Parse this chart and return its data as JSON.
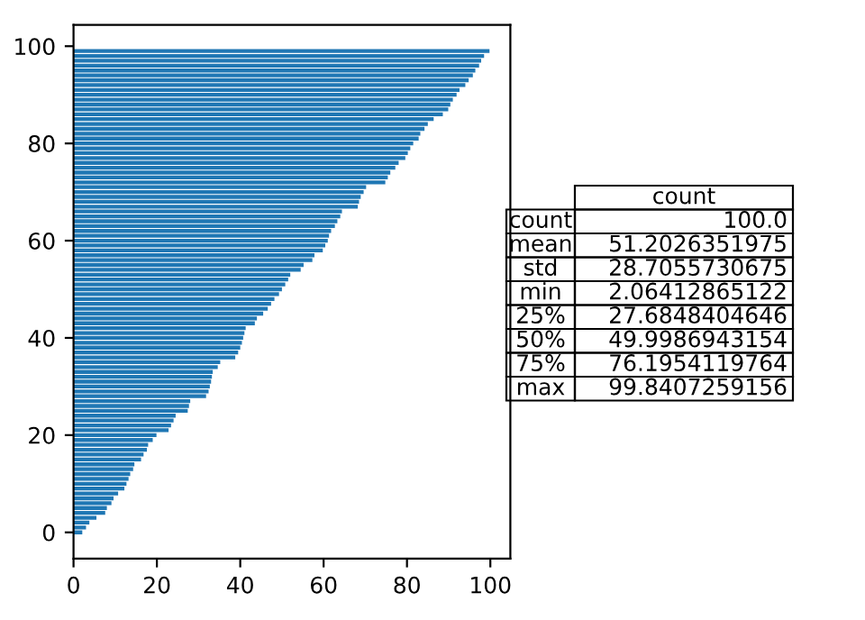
{
  "chart_data": {
    "type": "bar",
    "orientation": "horizontal",
    "x": [
      0,
      1,
      2,
      3,
      4,
      5,
      6,
      7,
      8,
      9,
      10,
      11,
      12,
      13,
      14,
      15,
      16,
      17,
      18,
      19,
      20,
      21,
      22,
      23,
      24,
      25,
      26,
      27,
      28,
      29,
      30,
      31,
      32,
      33,
      34,
      35,
      36,
      37,
      38,
      39,
      40,
      41,
      42,
      43,
      44,
      45,
      46,
      47,
      48,
      49,
      50,
      51,
      52,
      53,
      54,
      55,
      56,
      57,
      58,
      59,
      60,
      61,
      62,
      63,
      64,
      65,
      66,
      67,
      68,
      69,
      70,
      71,
      72,
      73,
      74,
      75,
      76,
      77,
      78,
      79,
      80,
      81,
      82,
      83,
      84,
      85,
      86,
      87,
      88,
      89,
      90,
      91,
      92,
      93,
      94,
      95,
      96,
      97,
      98,
      99
    ],
    "values": [
      2.1,
      3.0,
      3.8,
      5.5,
      7.6,
      8.0,
      9.1,
      9.6,
      10.7,
      12.2,
      12.7,
      13.2,
      13.6,
      14.3,
      14.6,
      16.2,
      16.8,
      17.6,
      17.9,
      19.0,
      19.9,
      22.8,
      23.4,
      24.0,
      24.5,
      27.4,
      27.7,
      28.0,
      31.8,
      32.4,
      32.7,
      33.0,
      33.2,
      33.4,
      34.6,
      35.2,
      38.8,
      39.5,
      40.0,
      40.4,
      40.7,
      41.0,
      41.3,
      43.5,
      44.0,
      45.5,
      46.6,
      47.4,
      48.2,
      49.3,
      50.0,
      50.8,
      51.5,
      52.0,
      54.5,
      55.2,
      57.3,
      57.8,
      59.8,
      60.4,
      61.0,
      61.3,
      61.8,
      62.7,
      63.3,
      64.0,
      64.4,
      68.2,
      68.5,
      68.9,
      69.6,
      70.2,
      74.8,
      75.4,
      76.0,
      77.2,
      78.0,
      79.6,
      80.2,
      80.8,
      81.5,
      82.8,
      83.2,
      84.2,
      85.0,
      86.4,
      88.6,
      89.9,
      90.4,
      91.0,
      91.9,
      92.6,
      94.0,
      94.8,
      95.8,
      96.4,
      97.3,
      97.8,
      98.5,
      99.8
    ],
    "color": "#1f77b4",
    "xlim": [
      0,
      104.8
    ],
    "xticks": [
      0,
      20,
      40,
      60,
      80,
      100
    ],
    "ylim": [
      -5.4,
      104.4
    ],
    "yticks": [
      0,
      20,
      40,
      60,
      80,
      100
    ],
    "annotations": [
      "count",
      "count",
      "100.0",
      "mean",
      "51.2026351975",
      "std",
      "28.7055730675",
      "min",
      "2.06412865122",
      "25%",
      "27.6848404646",
      "50%",
      "49.9986943154",
      "75%",
      "76.1954119764",
      "max",
      "99.8407259156"
    ]
  }
}
